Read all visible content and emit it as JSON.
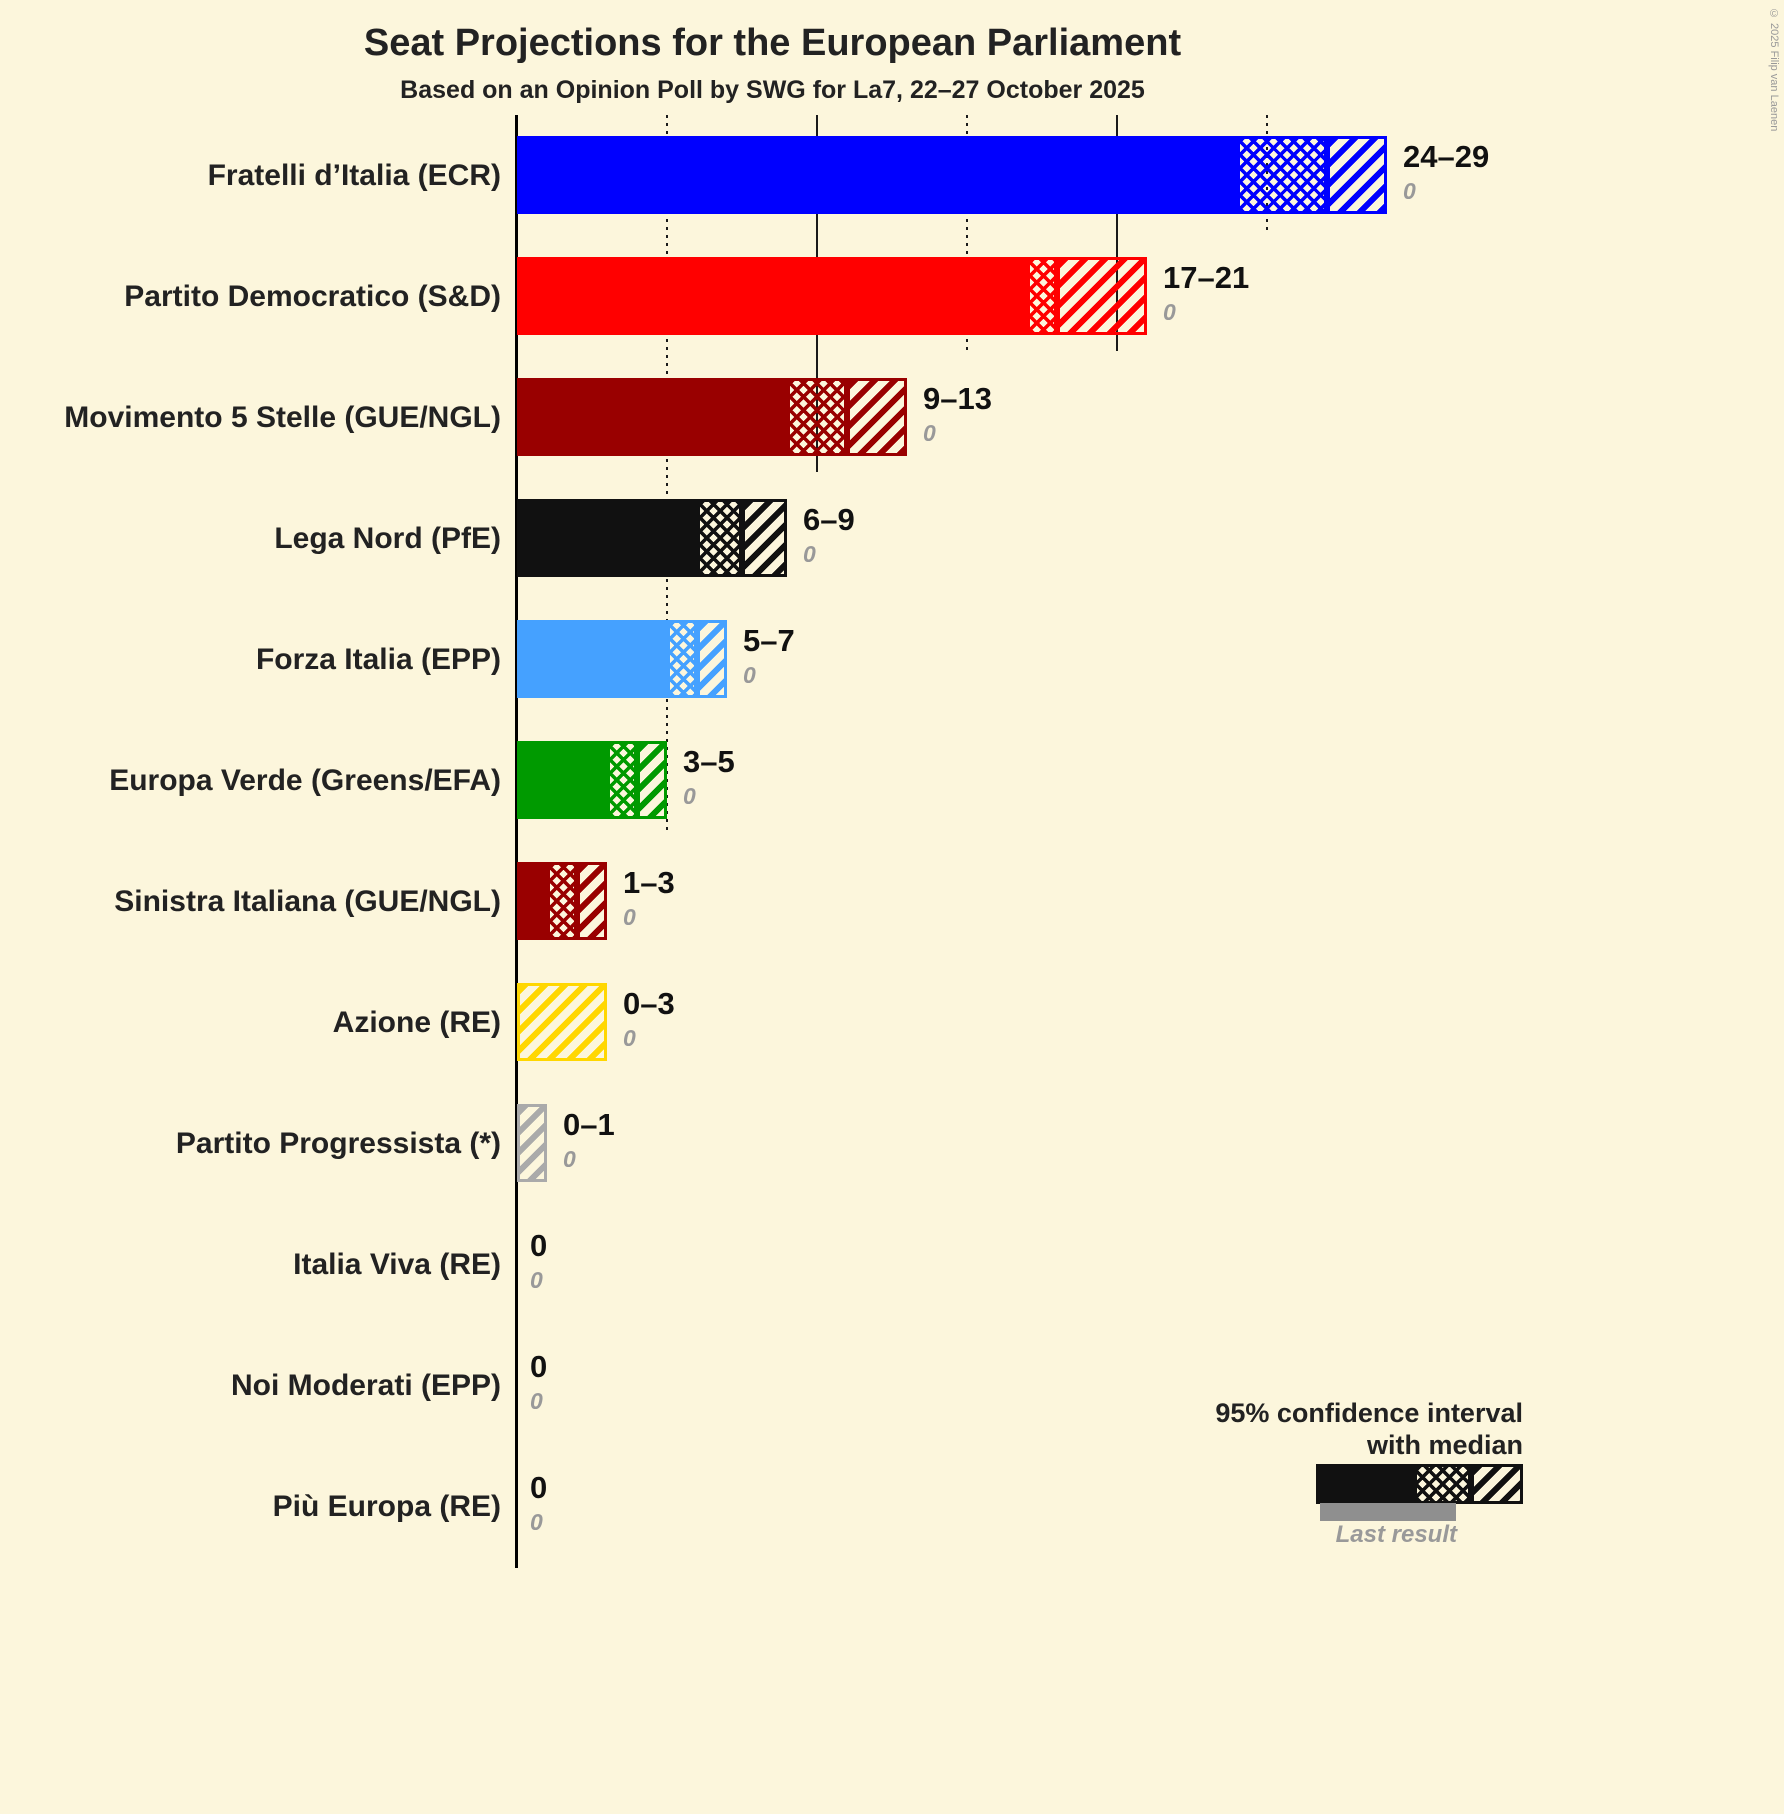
{
  "title": "Seat Projections for the European Parliament",
  "subtitle": "Based on an Opinion Poll by SWG for La7, 22–27 October 2025",
  "copyright": "© 2025 Filip van Laenen",
  "legend": {
    "line1": "95% confidence interval",
    "line2": "with median",
    "last_result_label": "Last result"
  },
  "colors": {
    "background": "#FCF6DC",
    "text": "#222222",
    "muted": "#999999",
    "legend_black": "#111111",
    "last_result_gray": "#8F8F8F"
  },
  "chart_data": {
    "type": "bar",
    "orientation": "horizontal",
    "title": "Seat Projections for the European Parliament",
    "subtitle": "Based on an Opinion Poll by SWG for La7, 22–27 October 2025",
    "xlim": [
      0,
      30
    ],
    "gridlines": [
      {
        "value": 5,
        "style": "dotted"
      },
      {
        "value": 10,
        "style": "solid"
      },
      {
        "value": 15,
        "style": "dotted"
      },
      {
        "value": 20,
        "style": "solid"
      },
      {
        "value": 25,
        "style": "dotted"
      }
    ],
    "parties": [
      {
        "label": "Fratelli d’Italia (ECR)",
        "color": "#0000FF",
        "low": 24,
        "median": 27,
        "high": 29,
        "range_label": "24–29",
        "last_result": 0,
        "last_result_label": "0"
      },
      {
        "label": "Partito Democratico (S&D)",
        "color": "#FF0000",
        "low": 17,
        "median": 18,
        "high": 21,
        "range_label": "17–21",
        "last_result": 0,
        "last_result_label": "0"
      },
      {
        "label": "Movimento 5 Stelle (GUE/NGL)",
        "color": "#990000",
        "low": 9,
        "median": 11,
        "high": 13,
        "range_label": "9–13",
        "last_result": 0,
        "last_result_label": "0"
      },
      {
        "label": "Lega Nord (PfE)",
        "color": "#111111",
        "low": 6,
        "median": 7.5,
        "high": 9,
        "range_label": "6–9",
        "last_result": 0,
        "last_result_label": "0"
      },
      {
        "label": "Forza Italia (EPP)",
        "color": "#45A1FF",
        "low": 5,
        "median": 6,
        "high": 7,
        "range_label": "5–7",
        "last_result": 0,
        "last_result_label": "0"
      },
      {
        "label": "Europa Verde (Greens/EFA)",
        "color": "#009A00",
        "low": 3,
        "median": 4,
        "high": 5,
        "range_label": "3–5",
        "last_result": 0,
        "last_result_label": "0"
      },
      {
        "label": "Sinistra Italiana (GUE/NGL)",
        "color": "#990000",
        "low": 1,
        "median": 2,
        "high": 3,
        "range_label": "1–3",
        "last_result": 0,
        "last_result_label": "0"
      },
      {
        "label": "Azione (RE)",
        "color": "#FFD700",
        "low": 0,
        "median": 0,
        "high": 3,
        "range_label": "0–3",
        "last_result": 0,
        "last_result_label": "0"
      },
      {
        "label": "Partito Progressista (*)",
        "color": "#AAAAAA",
        "low": 0,
        "median": 0,
        "high": 1,
        "range_label": "0–1",
        "last_result": 0,
        "last_result_label": "0"
      },
      {
        "label": "Italia Viva (RE)",
        "color": "#888888",
        "low": 0,
        "median": 0,
        "high": 0,
        "range_label": "0",
        "last_result": 0,
        "last_result_label": "0"
      },
      {
        "label": "Noi Moderati (EPP)",
        "color": "#888888",
        "low": 0,
        "median": 0,
        "high": 0,
        "range_label": "0",
        "last_result": 0,
        "last_result_label": "0"
      },
      {
        "label": "Più Europa (RE)",
        "color": "#888888",
        "low": 0,
        "median": 0,
        "high": 0,
        "range_label": "0",
        "last_result": 0,
        "last_result_label": "0"
      }
    ]
  }
}
